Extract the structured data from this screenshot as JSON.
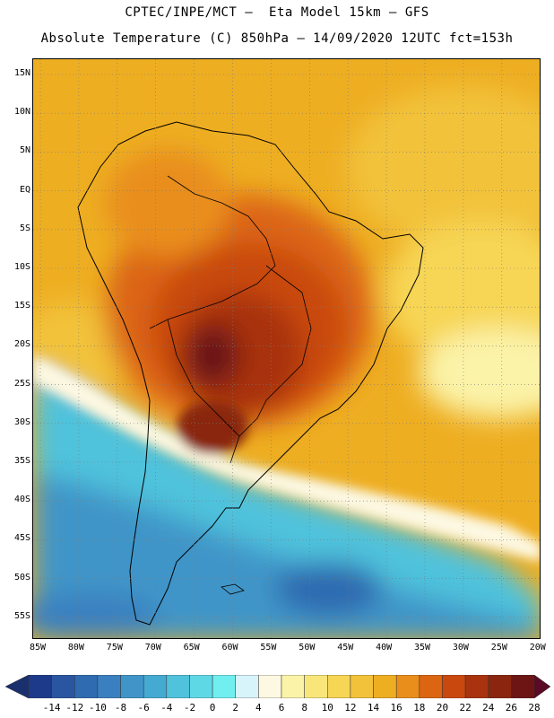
{
  "title_line1": "CPTEC/INPE/MCT —  Eta Model 15km — GFS",
  "title_line2": "Absolute Temperature (C) 850hPa — 14/09/2020 12UTC fct=153h",
  "latitude_labels": [
    "15N",
    "10N",
    "5N",
    "EQ",
    "5S",
    "10S",
    "15S",
    "20S",
    "25S",
    "30S",
    "35S",
    "40S",
    "45S",
    "50S",
    "55S"
  ],
  "longitude_labels": [
    "85W",
    "80W",
    "75W",
    "70W",
    "65W",
    "60W",
    "55W",
    "50W",
    "45W",
    "40W",
    "35W",
    "30W",
    "25W",
    "20W"
  ],
  "colorbar": {
    "labels": [
      "-14",
      "-12",
      "-10",
      "-8",
      "-6",
      "-4",
      "-2",
      "0",
      "2",
      "4",
      "6",
      "8",
      "10",
      "12",
      "14",
      "16",
      "18",
      "20",
      "22",
      "24",
      "26",
      "28"
    ],
    "colors": [
      "#1d3a8a",
      "#2a55a0",
      "#2f6bb0",
      "#3a80c0",
      "#3f95c8",
      "#45aad2",
      "#50c2dc",
      "#5fd8e6",
      "#70eef0",
      "#d6f4fa",
      "#fdf8e2",
      "#fbf3a8",
      "#f9e67a",
      "#f7d555",
      "#f2c23a",
      "#eeae22",
      "#e98e1a",
      "#dc6512",
      "#c9480e",
      "#a8330e",
      "#8a250f",
      "#6b1515"
    ],
    "low_end_color": "#1a2f6e",
    "high_end_color": "#5a0a24"
  }
}
